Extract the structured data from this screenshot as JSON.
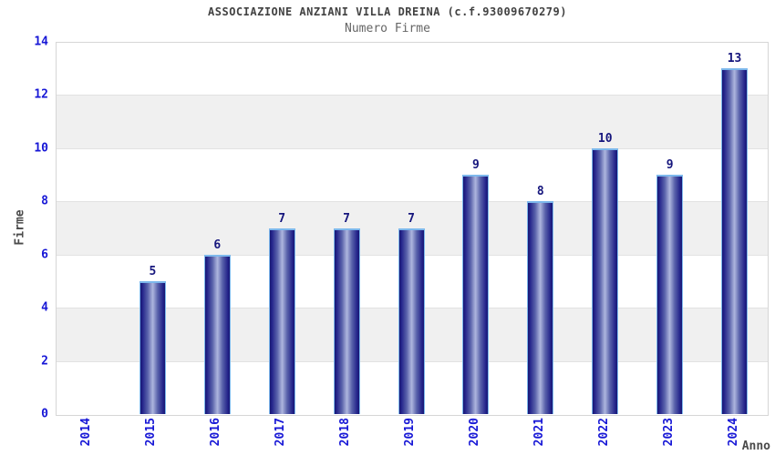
{
  "chart_data": {
    "type": "bar",
    "title": "ASSOCIAZIONE ANZIANI VILLA DREINA (c.f.93009670279)",
    "subtitle": "Numero Firme",
    "xlabel": "Anno",
    "ylabel": "Firme",
    "categories": [
      "2014",
      "2015",
      "2016",
      "2017",
      "2018",
      "2019",
      "2020",
      "2021",
      "2022",
      "2023",
      "2024"
    ],
    "values": [
      null,
      5,
      6,
      7,
      7,
      7,
      9,
      8,
      10,
      9,
      13
    ],
    "ylim": [
      0,
      14
    ],
    "ytick_step": 2,
    "grid": "horizontal-bands",
    "legend": "none",
    "colors": {
      "bar_edge": "#181872",
      "bar_center": "#aeb6de",
      "bar_border": "#7db8ec",
      "tick_label": "#1717d6",
      "value_label": "#16167d",
      "band_gray": "#f0f0f0",
      "band_white": "#ffffff",
      "title": "#424242",
      "subtitle": "#666666",
      "axis_border": "#d6d6d6"
    }
  }
}
